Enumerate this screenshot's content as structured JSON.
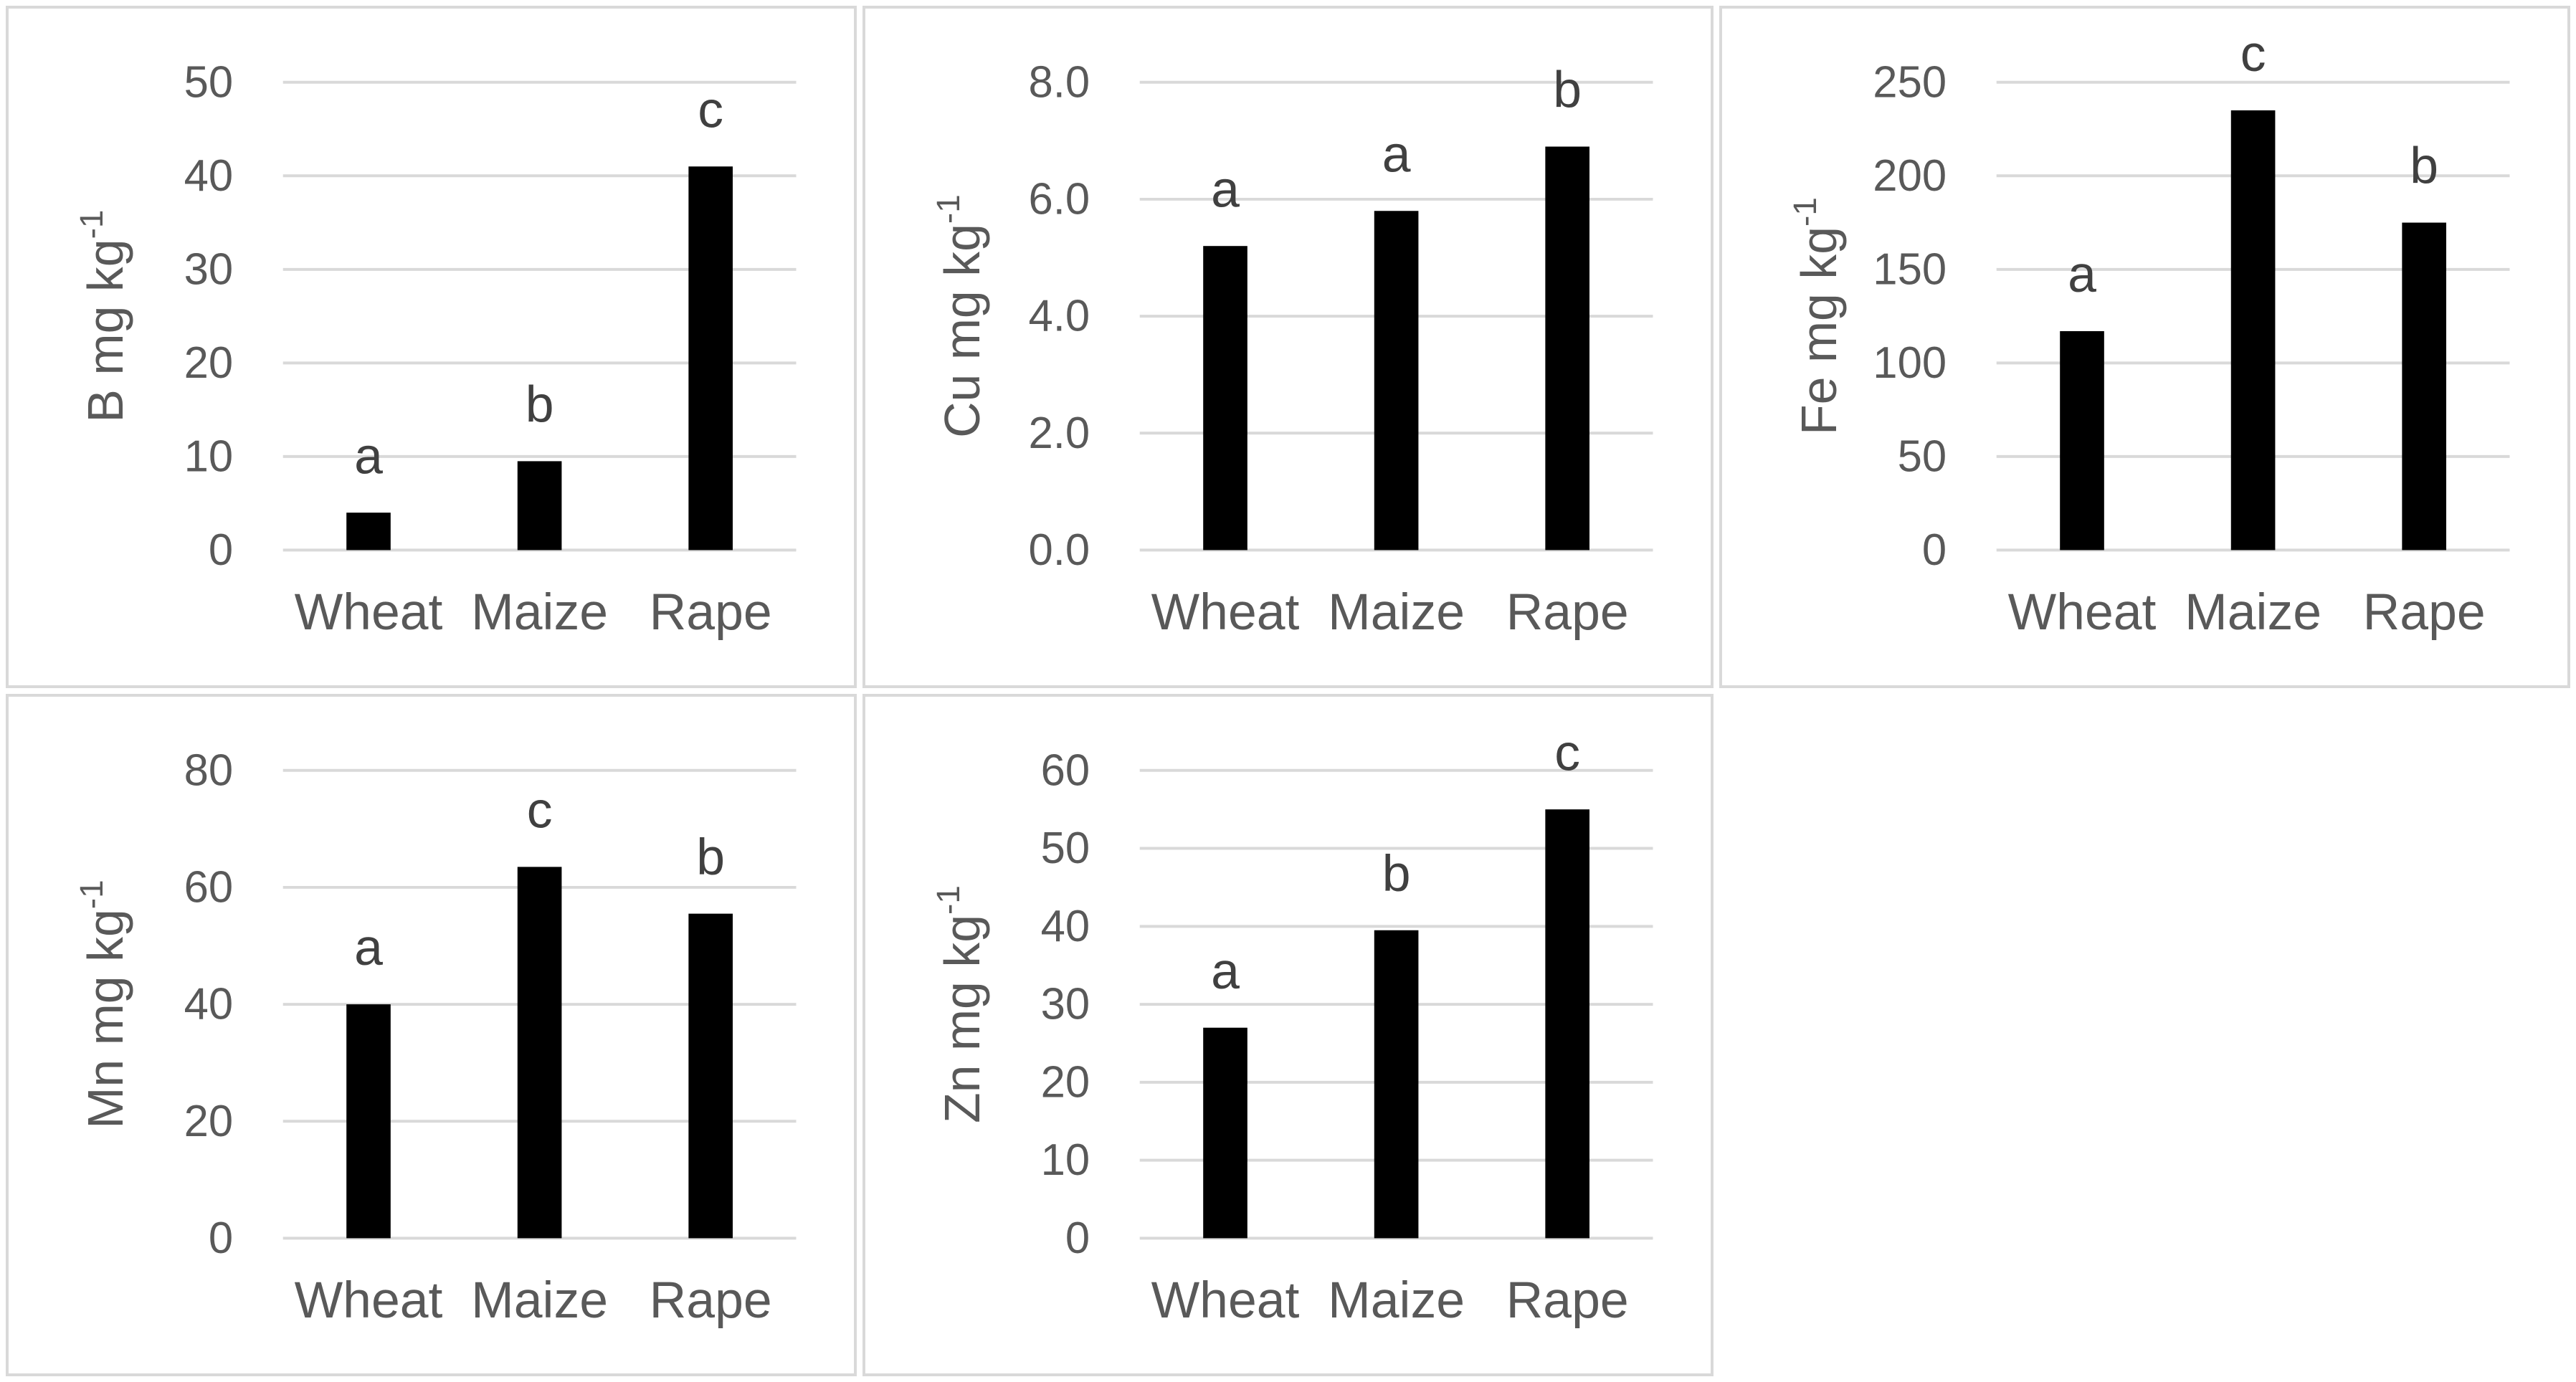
{
  "figure": {
    "grid": {
      "rows": 2,
      "cols": 3
    },
    "empty_cells": [
      "row2-col3"
    ],
    "panel_order": [
      "B",
      "Cu",
      "Fe",
      "Mn",
      "Zn"
    ]
  },
  "colors": {
    "bar": "#000000",
    "gridline": "#d9d9d9",
    "panel_border": "#d9d9d9",
    "axis_text": "#595959",
    "letter": "#404040",
    "background": "#ffffff"
  },
  "chart_data": [
    {
      "id": "B",
      "type": "bar",
      "title": "",
      "ylabel": "B mg kg⁻¹",
      "ylabel_main": "B mg kg",
      "ylabel_sup": "-1",
      "xlabel": "",
      "categories": [
        "Wheat",
        "Maize",
        "Rape"
      ],
      "values": [
        4,
        9.5,
        41
      ],
      "significance_letters": [
        "a",
        "b",
        "c"
      ],
      "ylim": [
        0,
        50
      ],
      "ytick_values": [
        0,
        10,
        20,
        30,
        40,
        50
      ],
      "ytick_labels": [
        "0",
        "10",
        "20",
        "30",
        "40",
        "50"
      ],
      "grid": true,
      "legend": false
    },
    {
      "id": "Cu",
      "type": "bar",
      "title": "",
      "ylabel": "Cu mg kg⁻¹",
      "ylabel_main": "Cu mg kg",
      "ylabel_sup": "-1",
      "xlabel": "",
      "categories": [
        "Wheat",
        "Maize",
        "Rape"
      ],
      "values": [
        5.2,
        5.8,
        6.9
      ],
      "significance_letters": [
        "a",
        "a",
        "b"
      ],
      "ylim": [
        0,
        8
      ],
      "ytick_values": [
        0,
        2,
        4,
        6,
        8
      ],
      "ytick_labels": [
        "0.0",
        "2.0",
        "4.0",
        "6.0",
        "8.0"
      ],
      "grid": true,
      "legend": false
    },
    {
      "id": "Fe",
      "type": "bar",
      "title": "",
      "ylabel": "Fe mg kg⁻¹",
      "ylabel_main": "Fe mg kg",
      "ylabel_sup": "-1",
      "xlabel": "",
      "categories": [
        "Wheat",
        "Maize",
        "Rape"
      ],
      "values": [
        117,
        235,
        175
      ],
      "significance_letters": [
        "a",
        "c",
        "b"
      ],
      "ylim": [
        0,
        250
      ],
      "ytick_values": [
        0,
        50,
        100,
        150,
        200,
        250
      ],
      "ytick_labels": [
        "0",
        "50",
        "100",
        "150",
        "200",
        "250"
      ],
      "grid": true,
      "legend": false
    },
    {
      "id": "Mn",
      "type": "bar",
      "title": "",
      "ylabel": "Mn mg kg⁻¹",
      "ylabel_main": "Mn mg kg",
      "ylabel_sup": "-1",
      "xlabel": "",
      "categories": [
        "Wheat",
        "Maize",
        "Rape"
      ],
      "values": [
        40,
        63.5,
        55.5
      ],
      "significance_letters": [
        "a",
        "c",
        "b"
      ],
      "ylim": [
        0,
        80
      ],
      "ytick_values": [
        0,
        20,
        40,
        60,
        80
      ],
      "ytick_labels": [
        "0",
        "20",
        "40",
        "60",
        "80"
      ],
      "grid": true,
      "legend": false
    },
    {
      "id": "Zn",
      "type": "bar",
      "title": "",
      "ylabel": "Zn mg kg⁻¹",
      "ylabel_main": "Zn mg kg",
      "ylabel_sup": "-1",
      "xlabel": "",
      "categories": [
        "Wheat",
        "Maize",
        "Rape"
      ],
      "values": [
        27,
        39.5,
        55
      ],
      "significance_letters": [
        "a",
        "b",
        "c"
      ],
      "ylim": [
        0,
        60
      ],
      "ytick_values": [
        0,
        10,
        20,
        30,
        40,
        50,
        60
      ],
      "ytick_labels": [
        "0",
        "10",
        "20",
        "30",
        "40",
        "50",
        "60"
      ],
      "grid": true,
      "legend": false
    }
  ]
}
